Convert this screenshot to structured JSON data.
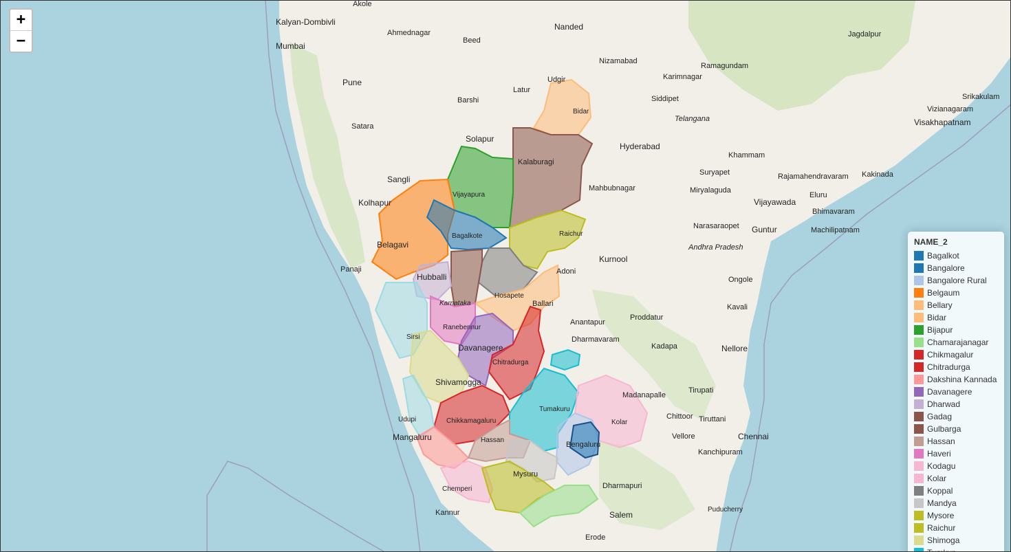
{
  "zoom": {
    "in_label": "+",
    "out_label": "−"
  },
  "legend": {
    "title": "NAME_2",
    "items": [
      {
        "label": "Bagalkot",
        "color": "#1f77b4"
      },
      {
        "label": "Bangalore",
        "color": "#1f77b4"
      },
      {
        "label": "Bangalore Rural",
        "color": "#aec7e8"
      },
      {
        "label": "Belgaum",
        "color": "#ff7f0e"
      },
      {
        "label": "Bellary",
        "color": "#ffbb78"
      },
      {
        "label": "Bidar",
        "color": "#ffbb78"
      },
      {
        "label": "Bijapur",
        "color": "#2ca02c"
      },
      {
        "label": "Chamarajanagar",
        "color": "#98df8a"
      },
      {
        "label": "Chikmagalur",
        "color": "#d62728"
      },
      {
        "label": "Chitradurga",
        "color": "#d62728"
      },
      {
        "label": "Dakshina Kannada",
        "color": "#ff9896"
      },
      {
        "label": "Davanagere",
        "color": "#9467bd"
      },
      {
        "label": "Dharwad",
        "color": "#c5b0d5"
      },
      {
        "label": "Gadag",
        "color": "#8c564b"
      },
      {
        "label": "Gulbarga",
        "color": "#8c564b"
      },
      {
        "label": "Hassan",
        "color": "#c49c94"
      },
      {
        "label": "Haveri",
        "color": "#e377c2"
      },
      {
        "label": "Kodagu",
        "color": "#f7b6d2"
      },
      {
        "label": "Kolar",
        "color": "#f7b6d2"
      },
      {
        "label": "Koppal",
        "color": "#7f7f7f"
      },
      {
        "label": "Mandya",
        "color": "#c7c7c7"
      },
      {
        "label": "Mysore",
        "color": "#bcbd22"
      },
      {
        "label": "Raichur",
        "color": "#bcbd22"
      },
      {
        "label": "Shimoga",
        "color": "#dbdb8d"
      },
      {
        "label": "Tumkur",
        "color": "#17becf"
      }
    ]
  },
  "places": {
    "akole": "Akole",
    "kalyan": "Kalyan-Dombivli",
    "mumbai": "Mumbai",
    "ahmednagar": "Ahmednagar",
    "beed": "Beed",
    "nanded": "Nanded",
    "jagdalpur": "Jagdalpur",
    "nizamabad": "Nizamabad",
    "ramagundam": "Ramagundam",
    "karimnagar": "Karimnagar",
    "pune": "Pune",
    "udgir": "Udgir",
    "latur": "Latur",
    "barshi": "Barshi",
    "siddipet": "Siddipet",
    "srikakulam": "Srikakulam",
    "vizianagaram": "Vizianagaram",
    "telangana": "Telangana",
    "bidar": "Bidar",
    "satara": "Satara",
    "visakhapatnam": "Visakhapatnam",
    "solapur": "Solapur",
    "hyderabad": "Hyderabad",
    "kalaburagi": "Kalaburagi",
    "khammam": "Khammam",
    "suryapet": "Suryapet",
    "sangli": "Sangli",
    "mahbubnagar": "Mahbubnagar",
    "rajahmundry": "Rajamahendravaram",
    "kakinada": "Kakinada",
    "vijayapura": "Vijayapura",
    "miryalaguda": "Miryalaguda",
    "eluru": "Eluru",
    "kolhapur": "Kolhapur",
    "vijayawada": "Vijayawada",
    "bhimavaram": "Bhimavaram",
    "narasaraopet": "Narasaraopet",
    "guntur": "Guntur",
    "machilipatnam": "Machilipatnam",
    "raichur": "Raichur",
    "bagalkote": "Bagalkote",
    "belagavi": "Belagavi",
    "andhra": "Andhra Pradesh",
    "kurnool": "Kurnool",
    "panaji": "Panaji",
    "adoni": "Adoni",
    "hubballi": "Hubballi",
    "ongole": "Ongole",
    "hosapete": "Hosapete",
    "karnataka": "Karnataka",
    "ballari": "Ballari",
    "kavali": "Kavali",
    "proddatur": "Proddatur",
    "anantapur": "Anantapur",
    "ranebennur": "Ranebennur",
    "sirsi": "Sirsi",
    "dharmavaram": "Dharmavaram",
    "kadapa": "Kadapa",
    "davanagere": "Davanagere",
    "nellore": "Nellore",
    "chitradurga": "Chitradurga",
    "tirupati": "Tirupati",
    "shivamogga": "Shivamogga",
    "madanapalle": "Madanapalle",
    "tumakuru": "Tumakuru",
    "chittoor": "Chittoor",
    "tiruttani": "Tiruttani",
    "udupi": "Udupi",
    "chikkamagaluru": "Chikkamagaluru",
    "kolar": "Kolar",
    "mangaluru": "Mangaluru",
    "hassan": "Hassan",
    "vellore": "Vellore",
    "chennai": "Chennai",
    "bengaluru": "Bengaluru",
    "kanchipuram": "Kanchipuram",
    "mysuru": "Mysuru",
    "cherpperi": "Chemperi",
    "dharmapuri": "Dharmapuri",
    "puducherry": "Puducherry",
    "kannur": "Kannur",
    "salem": "Salem",
    "erode": "Erode"
  }
}
